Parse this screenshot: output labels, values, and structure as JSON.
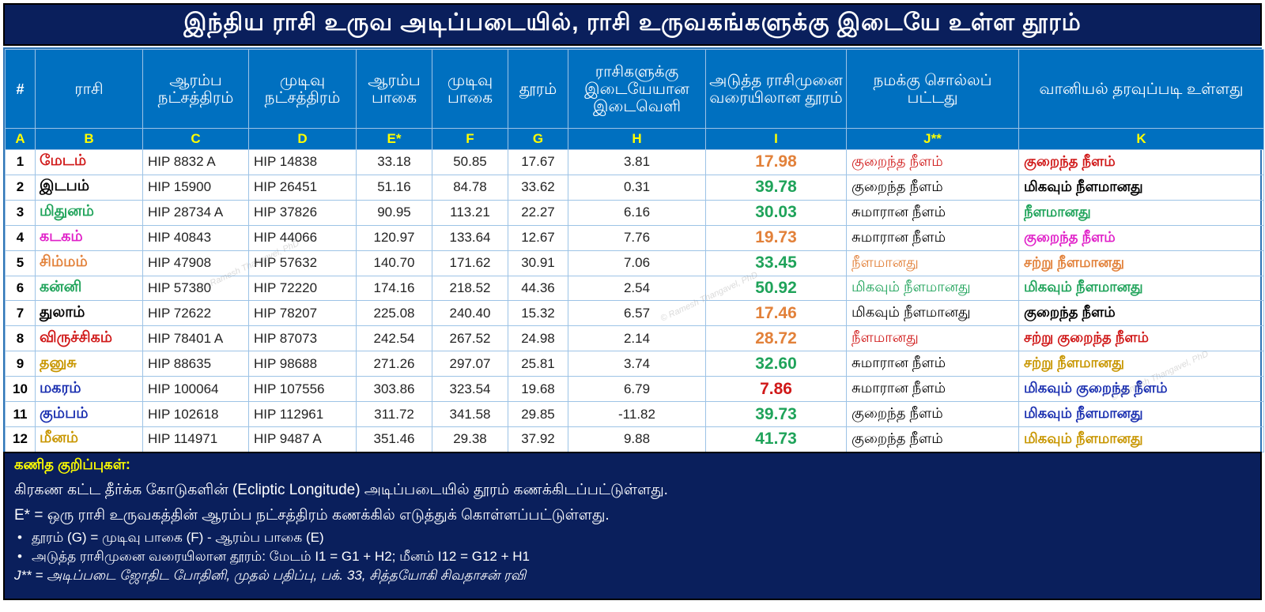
{
  "title": "இந்திய ராசி உருவ அடிப்படையில், ராசி உருவகங்களுக்கு இடையே உள்ள தூரம்",
  "colors": {
    "header_bg": "#0070c0",
    "title_bg": "#0a1f5c",
    "letter_row": "#ffff00",
    "green": "#1fa35a",
    "orange": "#e2813a",
    "red": "#d01919"
  },
  "columns": {
    "headers": [
      "#",
      "ராசி",
      "ஆரம்ப நட்சத்திரம்",
      "முடிவு நட்சத்திரம்",
      "ஆரம்ப பாகை",
      "முடிவு பாகை",
      "தூரம்",
      "ராசிகளுக்கு இடையேயான இடைவெளி",
      "அடுத்த ராசிமுனை வரையிலான தூரம்",
      "நமக்கு சொல்லப் பட்டது",
      "வானியல் தரவுப்படி உள்ளது"
    ],
    "letters": [
      "A",
      "B",
      "C",
      "D",
      "E*",
      "F",
      "G",
      "H",
      "I",
      "J**",
      "K"
    ]
  },
  "rows": [
    {
      "num": "1",
      "rasi": "மேடம்",
      "rasi_color": "#d01919",
      "start": "HIP 8832 A",
      "end": "HIP 14838",
      "e": "33.18",
      "f": "50.85",
      "g": "17.67",
      "h": "3.81",
      "i": "17.98",
      "i_color": "#e2813a",
      "j": "குறைந்த நீளம்",
      "j_color": "#d01919",
      "k": "குறைந்த நீளம்",
      "k_color": "#d01919"
    },
    {
      "num": "2",
      "rasi": "இடபம்",
      "rasi_color": "#000000",
      "start": "HIP 15900",
      "end": "HIP 26451",
      "e": "51.16",
      "f": "84.78",
      "g": "33.62",
      "h": "0.31",
      "i": "39.78",
      "i_color": "#1fa35a",
      "j": "குறைந்த நீளம்",
      "j_color": "#000000",
      "k": "மிகவும் நீளமானது",
      "k_color": "#000000"
    },
    {
      "num": "3",
      "rasi": "மிதுனம்",
      "rasi_color": "#1fa35a",
      "start": "HIP 28734 A",
      "end": "HIP 37826",
      "e": "90.95",
      "f": "113.21",
      "g": "22.27",
      "h": "6.16",
      "i": "30.03",
      "i_color": "#1fa35a",
      "j": "சுமாரான நீளம்",
      "j_color": "#000000",
      "k": "நீளமானது",
      "k_color": "#1fa35a"
    },
    {
      "num": "4",
      "rasi": "கடகம்",
      "rasi_color": "#e020c8",
      "start": "HIP 40843",
      "end": "HIP 44066",
      "e": "120.97",
      "f": "133.64",
      "g": "12.67",
      "h": "7.76",
      "i": "19.73",
      "i_color": "#e2813a",
      "j": "சுமாரான நீளம்",
      "j_color": "#000000",
      "k": "குறைந்த நீளம்",
      "k_color": "#e020c8"
    },
    {
      "num": "5",
      "rasi": "சிம்மம்",
      "rasi_color": "#e2813a",
      "start": "HIP 47908",
      "end": "HIP 57632",
      "e": "140.70",
      "f": "171.62",
      "g": "30.91",
      "h": "7.06",
      "i": "33.45",
      "i_color": "#1fa35a",
      "j": "நீளமானது",
      "j_color": "#e2813a",
      "k": "சற்று நீளமானது",
      "k_color": "#e2813a"
    },
    {
      "num": "6",
      "rasi": "கன்னி",
      "rasi_color": "#1fa35a",
      "start": "HIP 57380",
      "end": "HIP 72220",
      "e": "174.16",
      "f": "218.52",
      "g": "44.36",
      "h": "2.54",
      "i": "50.92",
      "i_color": "#1fa35a",
      "j": "மிகவும் நீளமானது",
      "j_color": "#1fa35a",
      "k": "மிகவும் நீளமானது",
      "k_color": "#1fa35a"
    },
    {
      "num": "7",
      "rasi": "துலாம்",
      "rasi_color": "#000000",
      "start": "HIP 72622",
      "end": "HIP 78207",
      "e": "225.08",
      "f": "240.40",
      "g": "15.32",
      "h": "6.57",
      "i": "17.46",
      "i_color": "#e2813a",
      "j": "மிகவும் நீளமானது",
      "j_color": "#000000",
      "k": "குறைந்த நீளம்",
      "k_color": "#000000"
    },
    {
      "num": "8",
      "rasi": "விருச்சிகம்",
      "rasi_color": "#d01919",
      "start": "HIP 78401 A",
      "end": "HIP 87073",
      "e": "242.54",
      "f": "267.52",
      "g": "24.98",
      "h": "2.14",
      "i": "28.72",
      "i_color": "#e2813a",
      "j": "நீளமானது",
      "j_color": "#d01919",
      "k": "சற்று குறைந்த நீளம்",
      "k_color": "#d01919"
    },
    {
      "num": "9",
      "rasi": "தனுசு",
      "rasi_color": "#c89600",
      "start": "HIP 88635",
      "end": "HIP 98688",
      "e": "271.26",
      "f": "297.07",
      "g": "25.81",
      "h": "3.74",
      "i": "32.60",
      "i_color": "#1fa35a",
      "j": "சுமாரான நீளம்",
      "j_color": "#000000",
      "k": "சற்று நீளமானது",
      "k_color": "#c89600"
    },
    {
      "num": "10",
      "rasi": "மகரம்",
      "rasi_color": "#1a2fb0",
      "start": "HIP 100064",
      "end": "HIP 107556",
      "e": "303.86",
      "f": "323.54",
      "g": "19.68",
      "h": "6.79",
      "i": "7.86",
      "i_color": "#d01919",
      "j": "சுமாரான நீளம்",
      "j_color": "#000000",
      "k": "மிகவும் குறைந்த நீளம்",
      "k_color": "#1a2fb0"
    },
    {
      "num": "11",
      "rasi": "கும்பம்",
      "rasi_color": "#1a2fb0",
      "start": "HIP 102618",
      "end": "HIP 112961",
      "e": "311.72",
      "f": "341.58",
      "g": "29.85",
      "h": "-11.82",
      "i": "39.73",
      "i_color": "#1fa35a",
      "j": "குறைந்த நீளம்",
      "j_color": "#000000",
      "k": "மிகவும் நீளமானது",
      "k_color": "#1a2fb0"
    },
    {
      "num": "12",
      "rasi": "மீனம்",
      "rasi_color": "#c89600",
      "start": "HIP 114971",
      "end": "HIP 9487 A",
      "e": "351.46",
      "f": "29.38",
      "g": "37.92",
      "h": "9.88",
      "i": "41.73",
      "i_color": "#1fa35a",
      "j": "குறைந்த நீளம்",
      "j_color": "#000000",
      "k": "மிகவும் நீளமானது",
      "k_color": "#c89600"
    }
  ],
  "watermark": "© Ramesh Thangavel, PhD",
  "notes": {
    "heading": "கணித குறிப்புகள்:",
    "line1": "கிரகண கட்ட தீர்க்க கோடுகளின் (Ecliptic Longitude) அடிப்படையில் தூரம் கணக்கிடப்பட்டுள்ளது.",
    "line2": "E* = ஒரு ராசி உருவகத்தின் ஆரம்ப நட்சத்திரம் கணக்கில் எடுத்துக் கொள்ளப்பட்டுள்ளது.",
    "bullet1": "தூரம் (G) = முடிவு பாகை (F) - ஆரம்ப பாகை (E)",
    "bullet2": "அடுத்த ராசிமுனை வரையிலான தூரம்: மேடம் I1 = G1 + H2; மீனம் I12 = G12 + H1",
    "footnote": "J** = அடிப்படை ஜோதிட போதினி, முதல் பதிப்பு, பக். 33, சித்தயோகி சிவதாசன் ரவி"
  }
}
